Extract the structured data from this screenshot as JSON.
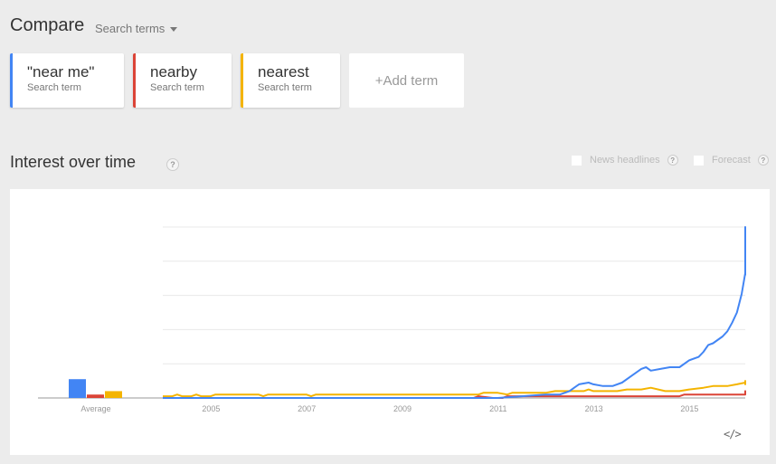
{
  "header": {
    "title": "Compare",
    "dropdown_label": "Search terms"
  },
  "terms": [
    {
      "name": "\"near me\"",
      "sub": "Search term",
      "color": "#4285f4"
    },
    {
      "name": "nearby",
      "sub": "Search term",
      "color": "#db4437"
    },
    {
      "name": "nearest",
      "sub": "Search term",
      "color": "#f4b400"
    }
  ],
  "add_term_label": "+Add term",
  "section": {
    "title": "Interest over time",
    "help": "?",
    "news_headlines_label": "News headlines",
    "forecast_label": "Forecast"
  },
  "embed_label": "</>",
  "chart_data": {
    "type": "line",
    "title": "Interest over time",
    "xlabel": "",
    "ylabel": "",
    "ylim": [
      0,
      100
    ],
    "grid": true,
    "x_ticks": [
      "2005",
      "2007",
      "2009",
      "2011",
      "2013",
      "2015"
    ],
    "average_bars": {
      "label": "Average",
      "values": [
        {
          "name": "\"near me\"",
          "value": 11
        },
        {
          "name": "nearby",
          "value": 2
        },
        {
          "name": "nearest",
          "value": 4
        }
      ]
    },
    "series": [
      {
        "name": "\"near me\"",
        "color": "#4285f4",
        "points": [
          [
            2004.0,
            0
          ],
          [
            2010.7,
            0
          ],
          [
            2010.8,
            0
          ],
          [
            2011.0,
            0
          ],
          [
            2011.5,
            1
          ],
          [
            2012.0,
            2
          ],
          [
            2012.3,
            2
          ],
          [
            2012.5,
            4
          ],
          [
            2012.7,
            8
          ],
          [
            2012.9,
            9
          ],
          [
            2013.0,
            8
          ],
          [
            2013.2,
            7
          ],
          [
            2013.4,
            7
          ],
          [
            2013.6,
            9
          ],
          [
            2013.8,
            13
          ],
          [
            2013.9,
            15
          ],
          [
            2014.0,
            17
          ],
          [
            2014.1,
            18
          ],
          [
            2014.2,
            16
          ],
          [
            2014.4,
            17
          ],
          [
            2014.6,
            18
          ],
          [
            2014.8,
            18
          ],
          [
            2015.0,
            22
          ],
          [
            2015.2,
            24
          ],
          [
            2015.3,
            27
          ],
          [
            2015.4,
            31
          ],
          [
            2015.5,
            32
          ],
          [
            2015.7,
            36
          ],
          [
            2015.8,
            39
          ],
          [
            2015.9,
            44
          ],
          [
            2016.0,
            50
          ],
          [
            2016.1,
            61
          ],
          [
            2016.2,
            73
          ],
          [
            2016.3,
            78
          ],
          [
            2016.4,
            72
          ],
          [
            2016.5,
            77
          ],
          [
            2016.6,
            78
          ],
          [
            2016.7,
            100
          ],
          [
            2016.8,
            97
          ],
          [
            2016.9,
            98
          ],
          [
            2017.0,
            100
          ]
        ]
      },
      {
        "name": "nearby",
        "color": "#db4437",
        "points": [
          [
            2004.0,
            0
          ],
          [
            2010.5,
            0
          ],
          [
            2010.6,
            1
          ],
          [
            2010.9,
            0
          ],
          [
            2011.1,
            0
          ],
          [
            2011.2,
            1
          ],
          [
            2013.0,
            1
          ],
          [
            2014.8,
            1
          ],
          [
            2014.9,
            2
          ],
          [
            2016.2,
            2
          ],
          [
            2016.3,
            3
          ],
          [
            2016.4,
            4
          ],
          [
            2016.5,
            3
          ],
          [
            2017.0,
            3
          ]
        ]
      },
      {
        "name": "nearest",
        "color": "#f4b400",
        "points": [
          [
            2004.0,
            1
          ],
          [
            2004.2,
            1
          ],
          [
            2004.3,
            2
          ],
          [
            2004.4,
            1
          ],
          [
            2004.6,
            1
          ],
          [
            2004.7,
            2
          ],
          [
            2004.8,
            1
          ],
          [
            2005.0,
            1
          ],
          [
            2005.1,
            2
          ],
          [
            2006.0,
            2
          ],
          [
            2006.1,
            1
          ],
          [
            2006.2,
            2
          ],
          [
            2007.0,
            2
          ],
          [
            2007.1,
            1
          ],
          [
            2007.2,
            2
          ],
          [
            2010.6,
            2
          ],
          [
            2010.7,
            3
          ],
          [
            2011.0,
            3
          ],
          [
            2011.2,
            2
          ],
          [
            2011.3,
            3
          ],
          [
            2012.0,
            3
          ],
          [
            2012.2,
            4
          ],
          [
            2012.8,
            4
          ],
          [
            2012.9,
            5
          ],
          [
            2013.0,
            4
          ],
          [
            2013.5,
            4
          ],
          [
            2013.7,
            5
          ],
          [
            2014.0,
            5
          ],
          [
            2014.2,
            6
          ],
          [
            2014.5,
            4
          ],
          [
            2014.8,
            4
          ],
          [
            2015.0,
            5
          ],
          [
            2015.3,
            6
          ],
          [
            2015.5,
            7
          ],
          [
            2015.8,
            7
          ],
          [
            2016.0,
            8
          ],
          [
            2016.2,
            9
          ],
          [
            2016.4,
            10
          ],
          [
            2016.6,
            9
          ],
          [
            2016.8,
            8
          ],
          [
            2016.9,
            9
          ],
          [
            2017.0,
            9
          ]
        ]
      }
    ]
  }
}
